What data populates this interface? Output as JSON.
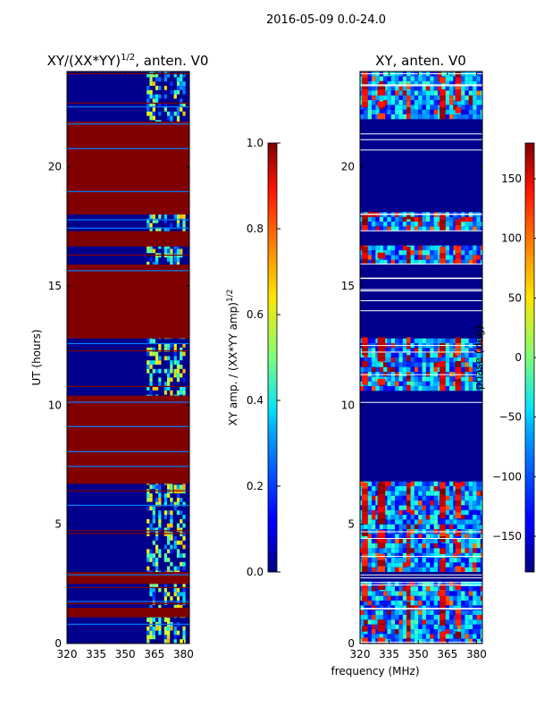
{
  "suptitle": "2016-05-09 0.0-24.0",
  "shared_xlabel": "frequency (MHz)",
  "colors": {
    "saturated": "#800000",
    "background_blue": "#00008c",
    "frame": "#000000",
    "gap_white": "#ffffff"
  },
  "chart_data": [
    {
      "type": "heatmap",
      "title": "XY/(XX*YY)",
      "title_superscript": "1/2",
      "title_suffix": ", anten. V0",
      "xlabel": "",
      "ylabel": "UT (hours)",
      "xlim": [
        320,
        383
      ],
      "ylim": [
        0,
        24
      ],
      "xticks": [
        320,
        335,
        350,
        365,
        380
      ],
      "yticks": [
        0,
        5,
        10,
        15,
        20
      ],
      "colormap": "jet",
      "colorbar": {
        "label": "XY amp. / (XX*YY amp)",
        "label_superscript": "1/2",
        "range": [
          0.0,
          1.0
        ],
        "ticks": [
          "0.0",
          "0.2",
          "0.4",
          "0.6",
          "0.8",
          "1.0"
        ]
      },
      "saturated_bands_hours": [
        [
          1.1,
          1.5
        ],
        [
          2.5,
          3.0
        ],
        [
          6.7,
          10.4
        ],
        [
          12.8,
          15.9
        ],
        [
          16.7,
          17.3
        ],
        [
          18.0,
          21.9
        ]
      ],
      "activity_columns_mhz": [
        [
          361,
          368
        ],
        [
          370,
          374
        ],
        [
          375,
          380
        ]
      ]
    },
    {
      "type": "heatmap",
      "title": "XY, anten. V0",
      "xlabel": "",
      "ylabel": "",
      "xlim": [
        320,
        383
      ],
      "ylim": [
        0,
        24
      ],
      "xticks": [
        320,
        335,
        350,
        365,
        380
      ],
      "yticks": [
        0,
        5,
        10,
        15,
        20
      ],
      "colormap": "jet",
      "colorbar": {
        "label": "phase (deg)",
        "range": [
          -180,
          180
        ],
        "ticks": [
          "−150",
          "−100",
          "−50",
          "0",
          "50",
          "100",
          "150"
        ]
      },
      "active_bands_hours": [
        [
          0.0,
          2.5
        ],
        [
          3.0,
          6.7
        ],
        [
          10.6,
          12.7
        ],
        [
          15.9,
          16.6
        ],
        [
          17.3,
          18.0
        ],
        [
          22.0,
          24.0
        ]
      ],
      "red_streak_columns_mhz": [
        [
          321,
          324
        ],
        [
          329,
          333
        ],
        [
          344,
          346
        ],
        [
          361,
          364
        ],
        [
          369,
          372
        ]
      ]
    }
  ]
}
